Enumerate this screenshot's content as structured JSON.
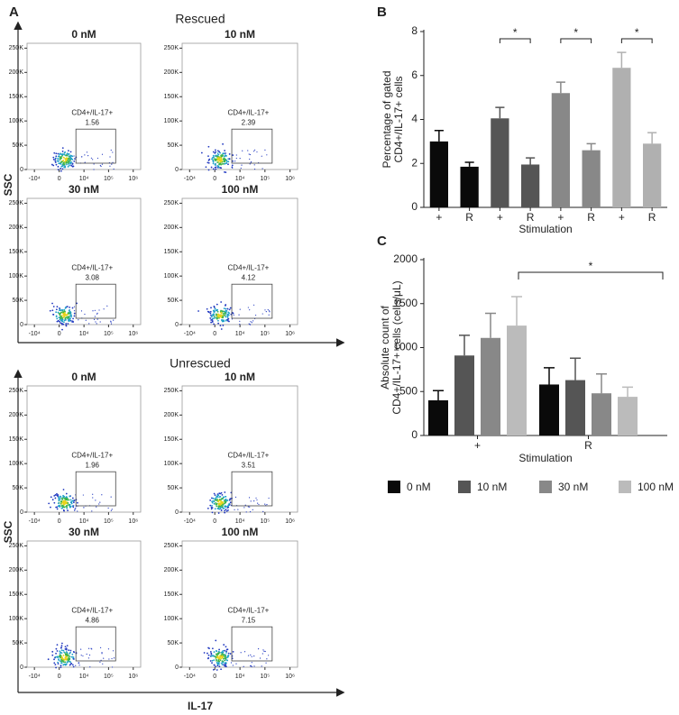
{
  "chart_data": [
    {
      "type": "flow",
      "panel": "A",
      "ylabel": "SSC",
      "xlabel": "IL-17",
      "xlim": [
        -20000,
        2000000
      ],
      "xticks": [
        {
          "value": -10000,
          "label": "-10⁴"
        },
        0,
        {
          "value": 10000,
          "label": "10⁴"
        },
        {
          "value": 100000,
          "label": "10⁵"
        },
        {
          "value": 1000000,
          "label": "10⁶"
        }
      ],
      "ylim": [
        0,
        260000
      ],
      "yticks": [
        0,
        {
          "value": 50000,
          "label": "50K"
        },
        {
          "value": 100000,
          "label": "100K"
        },
        {
          "value": 150000,
          "label": "150K"
        },
        {
          "value": 200000,
          "label": "200K"
        },
        {
          "value": 250000,
          "label": "250K"
        }
      ],
      "groups": [
        {
          "title": "Rescued",
          "plots": [
            {
              "title": "0 nM",
              "gate": "CD4+/IL-17+",
              "percent": 1.56
            },
            {
              "title": "10 nM",
              "gate": "CD4+/IL-17+",
              "percent": 2.39
            },
            {
              "title": "30 nM",
              "gate": "CD4+/IL-17+",
              "percent": 3.08
            },
            {
              "title": "100 nM",
              "gate": "CD4+/IL-17+",
              "percent": 4.12
            }
          ]
        },
        {
          "title": "Unrescued",
          "plots": [
            {
              "title": "0 nM",
              "gate": "CD4+/IL-17+",
              "percent": 1.96
            },
            {
              "title": "10 nM",
              "gate": "CD4+/IL-17+",
              "percent": 3.51
            },
            {
              "title": "30 nM",
              "gate": "CD4+/IL-17+",
              "percent": 4.86
            },
            {
              "title": "100 nM",
              "gate": "CD4+/IL-17+",
              "percent": 7.15
            }
          ]
        }
      ]
    },
    {
      "type": "bar",
      "panel": "B",
      "ylabel": [
        "Percentage of gated",
        "CD4+/IL-17+ cells"
      ],
      "xlabel": "Stimulation",
      "categories": [
        "+",
        "R",
        "+",
        "R",
        "+",
        "R",
        "+",
        "R"
      ],
      "values": [
        3.0,
        1.85,
        4.05,
        1.95,
        5.2,
        2.6,
        6.35,
        2.9
      ],
      "errors": [
        0.5,
        0.2,
        0.5,
        0.3,
        0.5,
        0.3,
        0.7,
        0.5
      ],
      "colors": [
        "#0a0a0a",
        "#0a0a0a",
        "#555555",
        "#555555",
        "#888888",
        "#888888",
        "#b0b0b0",
        "#b0b0b0"
      ],
      "ylim": [
        0,
        8
      ],
      "yticks": [
        0,
        2,
        4,
        6,
        8
      ],
      "significance": [
        "*",
        "*",
        "*"
      ]
    },
    {
      "type": "grouped-bar",
      "panel": "C",
      "ylabel": [
        "Absolute count of",
        "CD4+/IL-17+ cells (cells/μL)"
      ],
      "xlabel": "Stimulation",
      "categories": [
        "+",
        "R"
      ],
      "series": [
        {
          "name": "0 nM",
          "color": "#0a0a0a",
          "values": [
            400,
            580
          ],
          "errors": [
            110,
            190
          ]
        },
        {
          "name": "10 nM",
          "color": "#555555",
          "values": [
            910,
            630
          ],
          "errors": [
            230,
            250
          ]
        },
        {
          "name": "30 nM",
          "color": "#888888",
          "values": [
            1110,
            480
          ],
          "errors": [
            280,
            220
          ]
        },
        {
          "name": "100 nM",
          "color": "#bbbbbb",
          "values": [
            1250,
            440
          ],
          "errors": [
            330,
            110
          ]
        }
      ],
      "ylim": [
        0,
        2000
      ],
      "yticks": [
        0,
        500,
        1000,
        1500,
        2000
      ],
      "significance": [
        "*"
      ]
    }
  ]
}
